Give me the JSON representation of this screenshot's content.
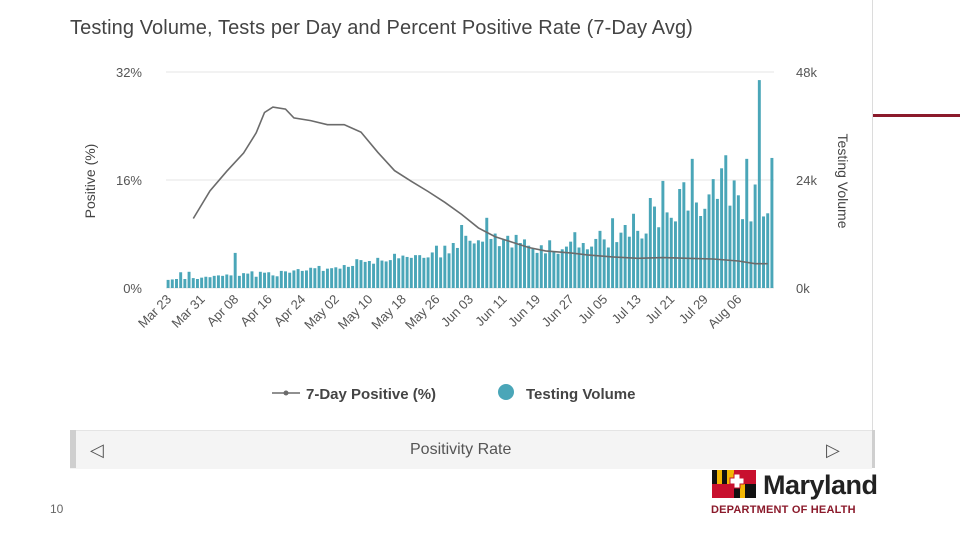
{
  "chart_data": {
    "type": "bar+line",
    "title": "Testing Volume, Tests per Day and Percent Positive Rate (7-Day Avg)",
    "left_axis": {
      "label": "Positive (%)",
      "range": [
        0,
        32
      ],
      "ticks": [
        "0%",
        "16%",
        "32%"
      ],
      "tick_values": [
        0,
        16,
        32
      ]
    },
    "right_axis": {
      "label": "Testing Volume",
      "range": [
        0,
        48000
      ],
      "ticks": [
        "0k",
        "24k",
        "48k"
      ],
      "tick_values": [
        0,
        24000,
        48000
      ]
    },
    "x_tick_labels": [
      "Mar 23",
      "Mar 31",
      "Apr 08",
      "Apr 16",
      "Apr 24",
      "May 02",
      "May 10",
      "May 18",
      "May 26",
      "Jun 03",
      "Jun 11",
      "Jun 19",
      "Jun 27",
      "Jul 05",
      "Jul 13",
      "Jul 21",
      "Jul 29",
      "Aug 06"
    ],
    "x_tick_day_index": [
      0,
      8,
      16,
      24,
      32,
      40,
      48,
      56,
      64,
      72,
      80,
      88,
      96,
      104,
      112,
      120,
      128,
      136
    ],
    "num_days": 145,
    "series": [
      {
        "name": "Testing Volume",
        "kind": "bar",
        "axis": "right",
        "color": "#4aa6b8",
        "values": [
          1800,
          1900,
          2000,
          3500,
          2000,
          3600,
          2200,
          2000,
          2300,
          2500,
          2400,
          2700,
          2800,
          2700,
          3000,
          2800,
          7800,
          2700,
          3300,
          3200,
          3700,
          2500,
          3600,
          3400,
          3500,
          2800,
          2600,
          3800,
          3700,
          3400,
          3900,
          4200,
          3800,
          3900,
          4500,
          4400,
          4900,
          3800,
          4300,
          4400,
          4600,
          4300,
          5100,
          4700,
          4900,
          6400,
          6200,
          5800,
          6000,
          5400,
          6700,
          6100,
          5900,
          6200,
          7600,
          6600,
          7200,
          6900,
          6700,
          7300,
          7300,
          6700,
          6800,
          7900,
          9400,
          6800,
          9400,
          7700,
          10000,
          8900,
          14000,
          11600,
          10500,
          9900,
          10600,
          10300,
          15600,
          10900,
          12100,
          9300,
          10700,
          11600,
          9000,
          11800,
          10000,
          10800,
          9400,
          8700,
          7800,
          9500,
          7700,
          10600,
          8100,
          7600,
          8600,
          9200,
          10300,
          12400,
          9000,
          10000,
          8600,
          9200,
          10900,
          12700,
          10800,
          9000,
          15500,
          10200,
          12300,
          14000,
          11400,
          16500,
          12700,
          11000,
          12100,
          20000,
          18100,
          13500,
          23800,
          16800,
          15600,
          14800,
          22000,
          23500,
          17200,
          28700,
          19000,
          16000,
          17600,
          20800,
          24200,
          19800,
          26600,
          29500,
          18300,
          23900,
          20600,
          15300,
          28700,
          14800,
          23000,
          46200,
          15900,
          16600,
          28900
        ],
        "value_days": [
          0,
          1,
          2,
          3,
          4,
          5,
          6,
          7,
          8,
          9,
          10,
          11,
          12,
          13,
          14,
          15,
          16,
          17,
          18,
          19,
          20,
          21,
          22,
          23,
          24,
          25,
          26,
          27,
          28,
          29,
          30,
          31,
          32,
          33,
          34,
          35,
          36,
          37,
          38,
          39,
          40,
          41,
          42,
          43,
          44,
          45,
          46,
          47,
          48,
          49,
          50,
          51,
          52,
          53,
          54,
          55,
          56,
          57,
          58,
          59,
          60,
          61,
          62,
          63,
          64,
          65,
          66,
          67,
          68,
          69,
          70,
          71,
          72,
          73,
          74,
          75,
          76,
          77,
          78,
          79,
          80,
          81,
          82,
          83,
          84,
          85,
          86,
          87,
          88,
          89,
          90,
          91,
          92,
          93,
          94,
          95,
          96,
          97,
          98,
          99,
          100,
          101,
          102,
          103,
          104,
          105,
          106,
          107,
          108,
          109,
          110,
          111,
          112,
          113,
          114,
          115,
          116,
          117,
          118,
          119,
          120,
          121,
          122,
          123,
          124,
          125,
          126,
          127,
          128,
          129,
          130,
          131,
          132,
          133,
          134,
          135,
          136,
          137,
          138,
          139,
          140,
          141,
          142,
          143,
          144
        ]
      },
      {
        "name": "7-Day Positive (%)",
        "kind": "line",
        "axis": "left",
        "color": "#6b6b6b",
        "points": [
          [
            6,
            10.3
          ],
          [
            10,
            14.4
          ],
          [
            14,
            17.3
          ],
          [
            18,
            20.0
          ],
          [
            21,
            23.0
          ],
          [
            23,
            26.0
          ],
          [
            25,
            26.8
          ],
          [
            28,
            26.5
          ],
          [
            30,
            25.2
          ],
          [
            34,
            24.8
          ],
          [
            38,
            24.2
          ],
          [
            42,
            24.2
          ],
          [
            46,
            23.1
          ],
          [
            50,
            20.1
          ],
          [
            54,
            17.4
          ],
          [
            58,
            15.8
          ],
          [
            62,
            14.3
          ],
          [
            66,
            12.7
          ],
          [
            70,
            10.9
          ],
          [
            74,
            8.9
          ],
          [
            78,
            7.6
          ],
          [
            82,
            6.8
          ],
          [
            86,
            6.0
          ],
          [
            90,
            5.5
          ],
          [
            96,
            5.2
          ],
          [
            100,
            4.9
          ],
          [
            106,
            4.6
          ],
          [
            112,
            4.4
          ],
          [
            118,
            4.5
          ],
          [
            124,
            4.4
          ],
          [
            130,
            4.3
          ],
          [
            136,
            4.0
          ],
          [
            140,
            3.6
          ],
          [
            143,
            3.6
          ]
        ]
      }
    ],
    "legend": [
      "7-Day Positive (%)",
      "Testing Volume"
    ]
  },
  "navigator": {
    "label": "Positivity Rate",
    "prev_icon": "◁",
    "next_icon": "▷"
  },
  "footer": {
    "page_number": "10"
  },
  "logo": {
    "word": "Maryland",
    "subtitle": "DEPARTMENT OF HEALTH"
  },
  "colors": {
    "bar": "#4aa6b8",
    "line": "#6b6b6b",
    "accent": "#8b1a2b",
    "grid": "#e6e6e6"
  }
}
